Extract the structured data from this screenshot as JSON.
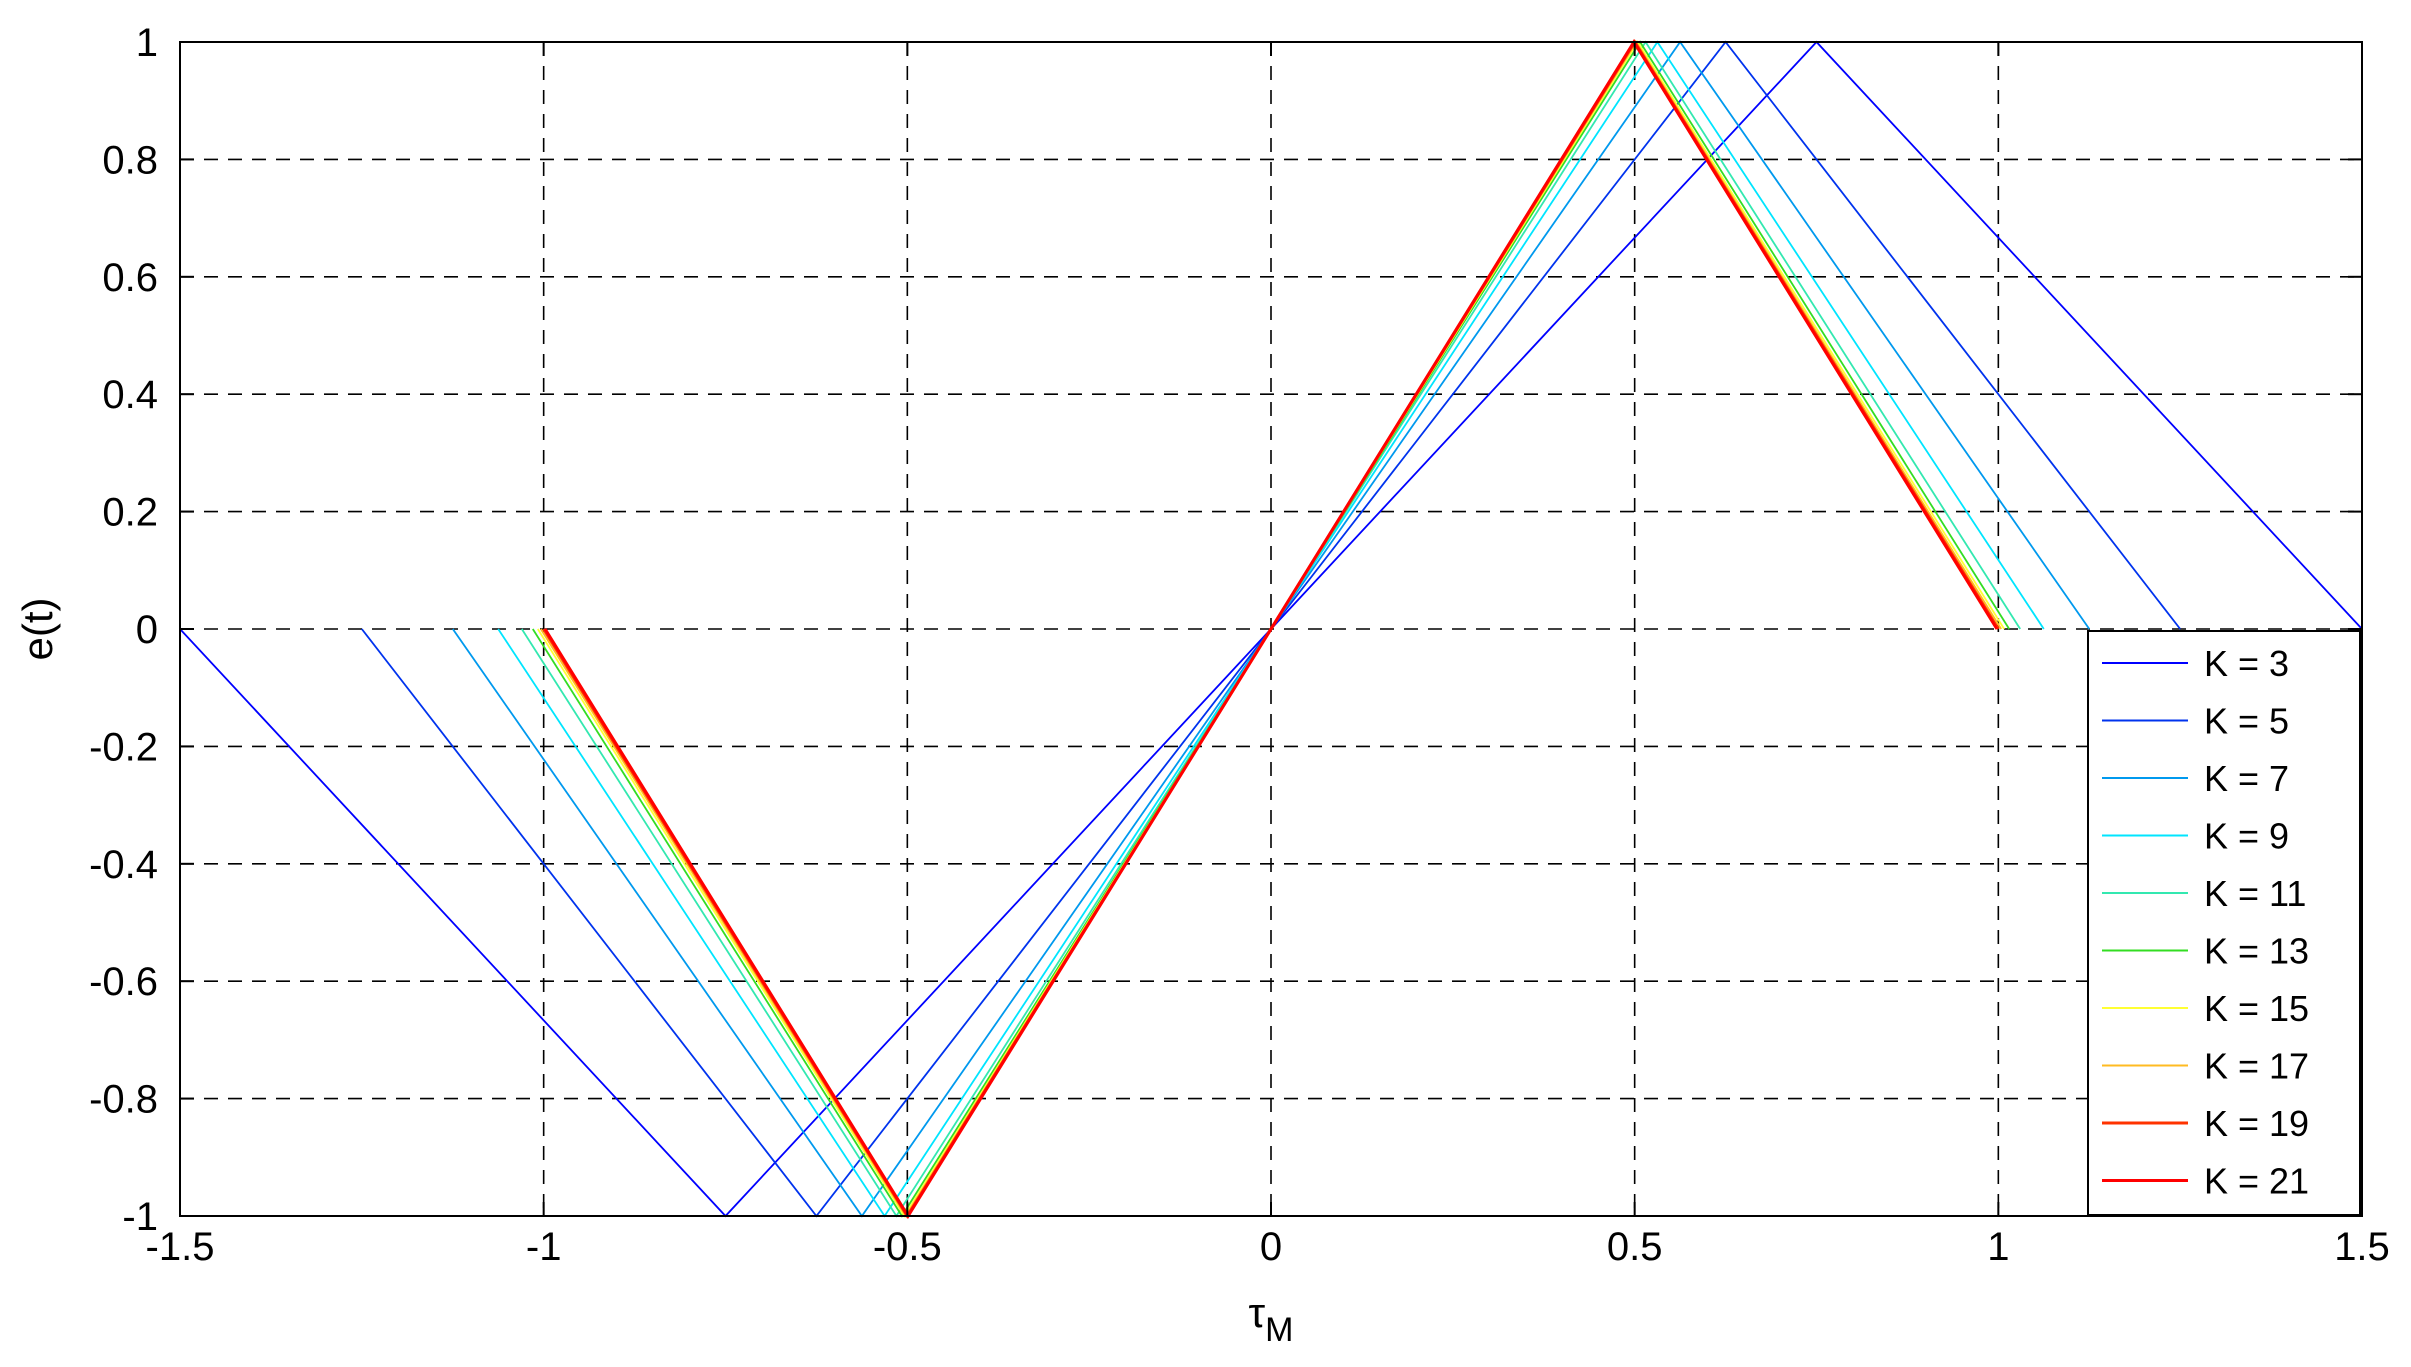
{
  "chart_data": {
    "type": "line",
    "xlabel": "τ",
    "xlabel_sub": "M",
    "ylabel": "e(t)",
    "xlim": [
      -1.5,
      1.5
    ],
    "ylim": [
      -1,
      1
    ],
    "xticks": [
      -1.5,
      -1,
      -0.5,
      0,
      0.5,
      1,
      1.5
    ],
    "xtick_labels": [
      "-1.5",
      "-1",
      "-0.5",
      "0",
      "0.5",
      "1",
      "1.5"
    ],
    "yticks": [
      -1,
      -0.8,
      -0.6,
      -0.4,
      -0.2,
      0,
      0.2,
      0.4,
      0.6,
      0.8,
      1
    ],
    "ytick_labels": [
      "-1",
      "-0.8",
      "-0.6",
      "-0.4",
      "-0.2",
      "0",
      "0.2",
      "0.4",
      "0.6",
      "0.8",
      "1"
    ],
    "grid": true,
    "grid_style": "dashed",
    "legend_position": "lower-right",
    "series": [
      {
        "name": "K = 3",
        "color": "#0000ff",
        "x": [
          -1.5,
          -0.75,
          0,
          0.75,
          1.5
        ],
        "y": [
          0,
          -1,
          0,
          1,
          0
        ]
      },
      {
        "name": "K = 5",
        "color": "#0033ee",
        "x": [
          -1.25,
          -0.625,
          0,
          0.625,
          1.25
        ],
        "y": [
          0,
          -1,
          0,
          1,
          0
        ]
      },
      {
        "name": "K = 7",
        "color": "#0099ee",
        "x": [
          -1.125,
          -0.5625,
          0,
          0.5625,
          1.125
        ],
        "y": [
          0,
          -1,
          0,
          1,
          0
        ]
      },
      {
        "name": "K = 9",
        "color": "#00e5ff",
        "x": [
          -1.0625,
          -0.53125,
          0,
          0.53125,
          1.0625
        ],
        "y": [
          0,
          -1,
          0,
          1,
          0
        ]
      },
      {
        "name": "K = 11",
        "color": "#33e8b0",
        "x": [
          -1.03,
          -0.515,
          0,
          0.515,
          1.03
        ],
        "y": [
          0,
          -1,
          0,
          1,
          0
        ]
      },
      {
        "name": "K = 13",
        "color": "#33dd22",
        "x": [
          -1.015,
          -0.5075,
          0,
          0.5075,
          1.015
        ],
        "y": [
          0,
          -1,
          0,
          1,
          0
        ]
      },
      {
        "name": "K = 15",
        "color": "#ffff33",
        "x": [
          -1.008,
          -0.504,
          0,
          0.504,
          1.008
        ],
        "y": [
          0,
          -1,
          0,
          1,
          0
        ]
      },
      {
        "name": "K = 17",
        "color": "#ffbb22",
        "x": [
          -1.004,
          -0.502,
          0,
          0.502,
          1.004
        ],
        "y": [
          0,
          -1,
          0,
          1,
          0
        ]
      },
      {
        "name": "K = 19",
        "color": "#ff3300",
        "x": [
          -1.0,
          -0.5,
          0,
          0.5,
          1.0
        ],
        "y": [
          0,
          -1,
          0,
          1,
          0
        ]
      },
      {
        "name": "K = 21",
        "color": "#ff0000",
        "x": [
          -0.998,
          -0.499,
          0,
          0.499,
          0.998
        ],
        "y": [
          0,
          -1,
          0,
          1,
          0
        ]
      }
    ]
  }
}
